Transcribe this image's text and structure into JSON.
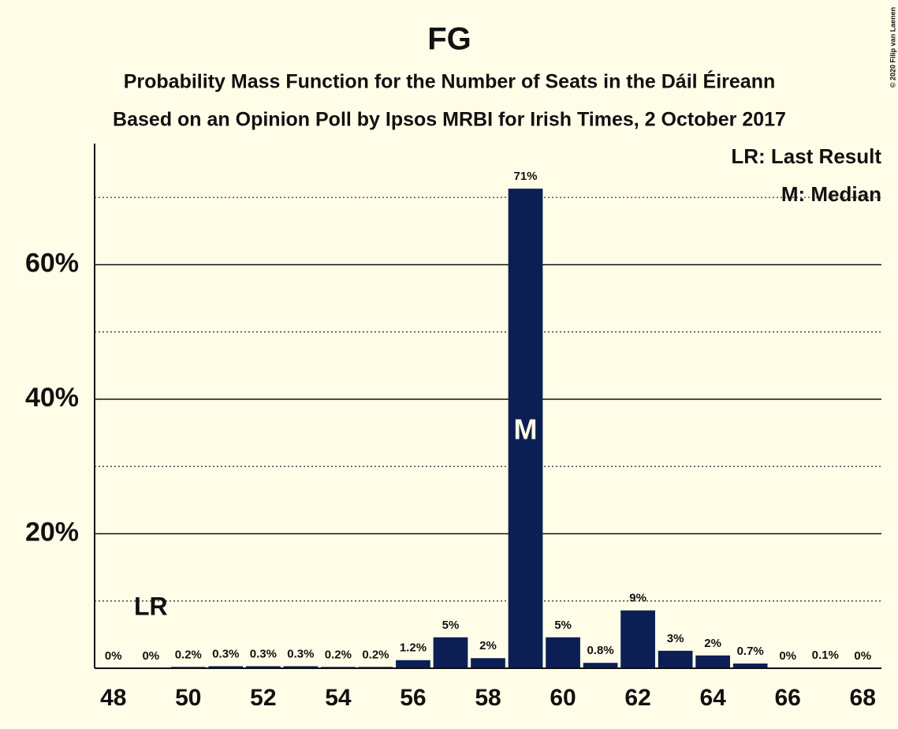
{
  "chart_data": {
    "type": "bar",
    "title": "FG",
    "subtitle": "Probability Mass Function for the Number of Seats in the Dáil Éireann",
    "subtitle2": "Based on an Opinion Poll by Ipsos MRBI for Irish Times, 2 October 2017",
    "copyright": "© 2020 Filip van Laenen",
    "x": [
      48,
      49,
      50,
      51,
      52,
      53,
      54,
      55,
      56,
      57,
      58,
      59,
      60,
      61,
      62,
      63,
      64,
      65,
      66,
      67,
      68
    ],
    "values": [
      0,
      0,
      0.2,
      0.3,
      0.3,
      0.3,
      0.2,
      0.2,
      1.2,
      4.6,
      1.5,
      71.3,
      4.6,
      0.8,
      8.6,
      2.6,
      1.9,
      0.7,
      0,
      0.1,
      0
    ],
    "value_labels": [
      "0%",
      "0%",
      "0.2%",
      "0.3%",
      "0.3%",
      "0.3%",
      "0.2%",
      "0.2%",
      "1.2%",
      "5%",
      "2%",
      "71%",
      "5%",
      "0.8%",
      "9%",
      "3%",
      "2%",
      "0.7%",
      "0%",
      "0.1%",
      "0%"
    ],
    "color": "#0b1f55",
    "xlim": [
      47.5,
      68.5
    ],
    "xticks": [
      48,
      50,
      52,
      54,
      56,
      58,
      60,
      62,
      64,
      66,
      68
    ],
    "ylim": [
      0,
      78
    ],
    "yticks": [
      {
        "value": 20,
        "label": "20%"
      },
      {
        "value": 40,
        "label": "40%"
      },
      {
        "value": 60,
        "label": "60%"
      }
    ],
    "yminor": [
      10,
      30,
      50,
      70
    ],
    "grid": true,
    "annotations": [
      {
        "text": "LR",
        "x": 49
      },
      {
        "text": "M",
        "x": 59
      }
    ],
    "legend": [
      "LR: Last Result",
      "M: Median"
    ]
  }
}
